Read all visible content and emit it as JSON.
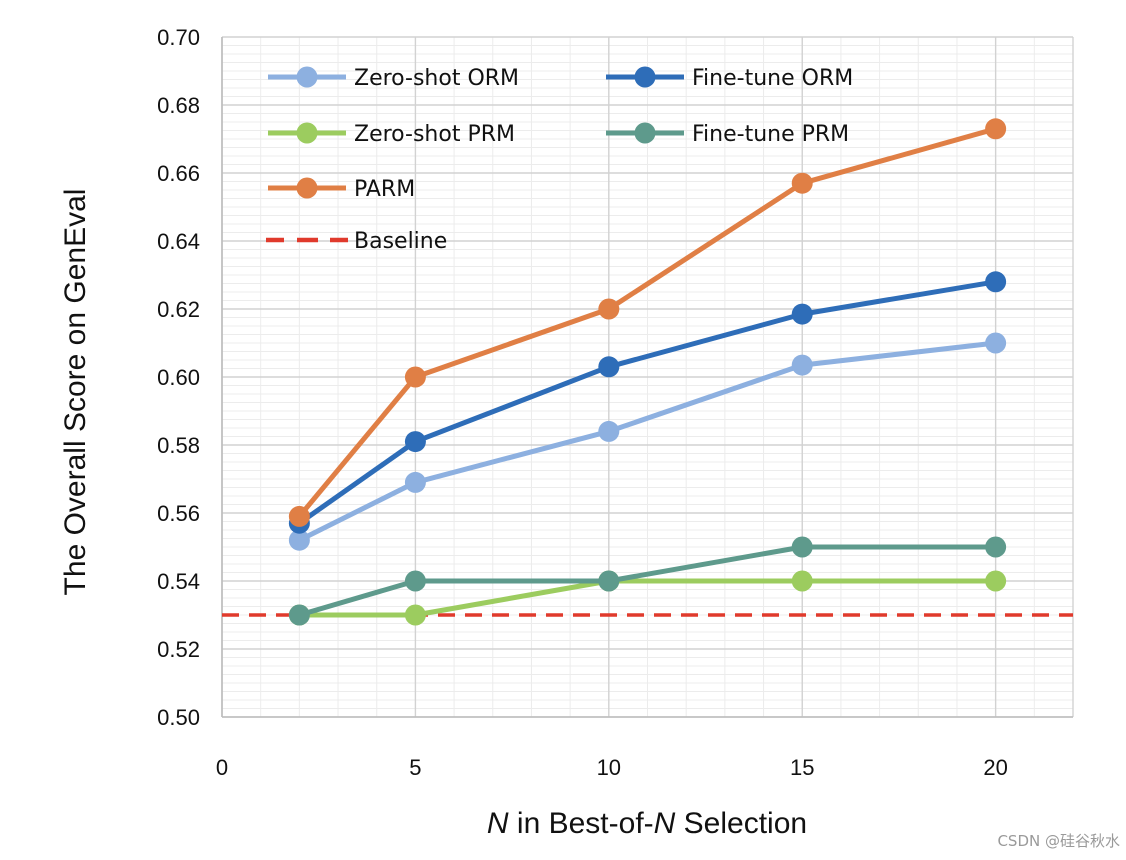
{
  "chart_data": {
    "type": "line",
    "xlabel_parts": [
      "N",
      " in Best-of-",
      "N",
      " Selection"
    ],
    "ylabel": "The Overall Score on GenEval",
    "xlim": [
      0,
      22
    ],
    "ylim": [
      0.5,
      0.7
    ],
    "xticks": [
      0,
      5,
      10,
      15,
      20
    ],
    "yticks": [
      0.5,
      0.52,
      0.54,
      0.56,
      0.58,
      0.6,
      0.62,
      0.64,
      0.66,
      0.68,
      0.7
    ],
    "xtick_labels": [
      "0",
      "5",
      "10",
      "15",
      "20"
    ],
    "ytick_labels": [
      "0.50",
      "0.52",
      "0.54",
      "0.56",
      "0.58",
      "0.60",
      "0.62",
      "0.64",
      "0.66",
      "0.68",
      "0.70"
    ],
    "grid": true,
    "legend_position": "top-left",
    "x": [
      2,
      5,
      10,
      15,
      20
    ],
    "series": [
      {
        "name": "Zero-shot ORM",
        "color": "#8DB0E0",
        "values": [
          0.552,
          0.569,
          0.584,
          0.6035,
          0.61
        ]
      },
      {
        "name": "Fine-tune ORM",
        "color": "#2E6DB8",
        "values": [
          0.557,
          0.581,
          0.603,
          0.6185,
          0.628
        ]
      },
      {
        "name": "Zero-shot PRM",
        "color": "#9CCC5F",
        "values": [
          0.53,
          0.53,
          0.54,
          0.54,
          0.54
        ]
      },
      {
        "name": "Fine-tune PRM",
        "color": "#5E9A8C",
        "values": [
          0.53,
          0.54,
          0.54,
          0.55,
          0.55
        ]
      },
      {
        "name": "PARM",
        "color": "#E07F45",
        "values": [
          0.559,
          0.6,
          0.62,
          0.657,
          0.673
        ]
      }
    ],
    "baseline": {
      "name": "Baseline",
      "value": 0.53,
      "color": "#E03A2C"
    }
  },
  "watermark": "CSDN @硅谷秋水"
}
